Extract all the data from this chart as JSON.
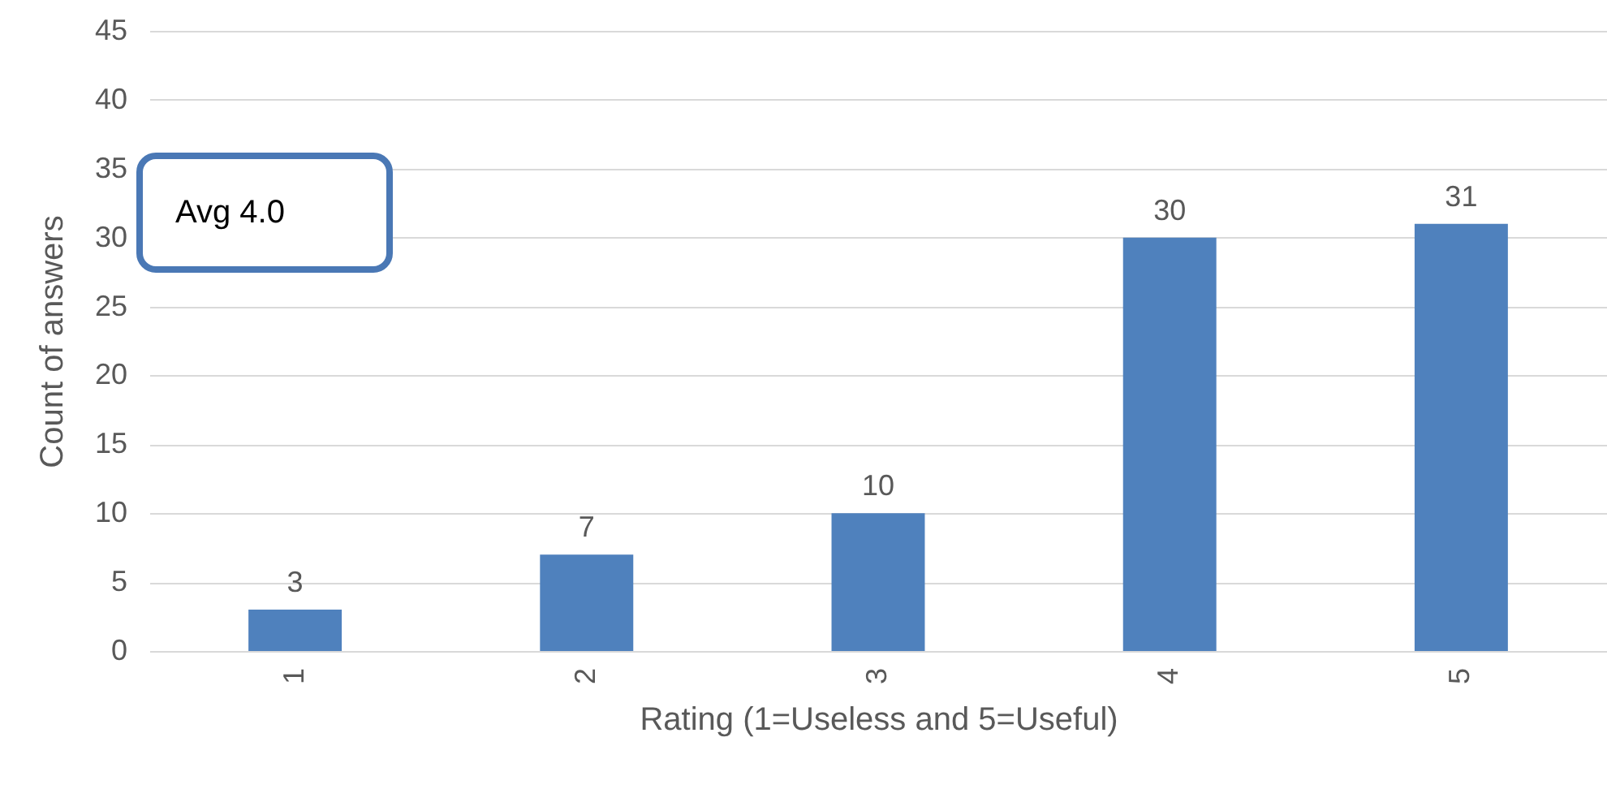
{
  "chart_data": {
    "type": "bar",
    "xlabel": "Rating (1=Useless and 5=Useful)",
    "ylabel": "Count of answers",
    "categories": [
      "1",
      "2",
      "3",
      "4",
      "5"
    ],
    "series": [
      {
        "color": "#4f81bd",
        "values": [
          3,
          7,
          10,
          30,
          31
        ]
      }
    ],
    "ylim": [
      0,
      45
    ],
    "yticks": [
      0,
      5,
      10,
      15,
      20,
      25,
      30,
      35,
      40,
      45
    ],
    "grid": "y",
    "data_labels": true,
    "annotations": [
      "Avg 4.0"
    ]
  }
}
